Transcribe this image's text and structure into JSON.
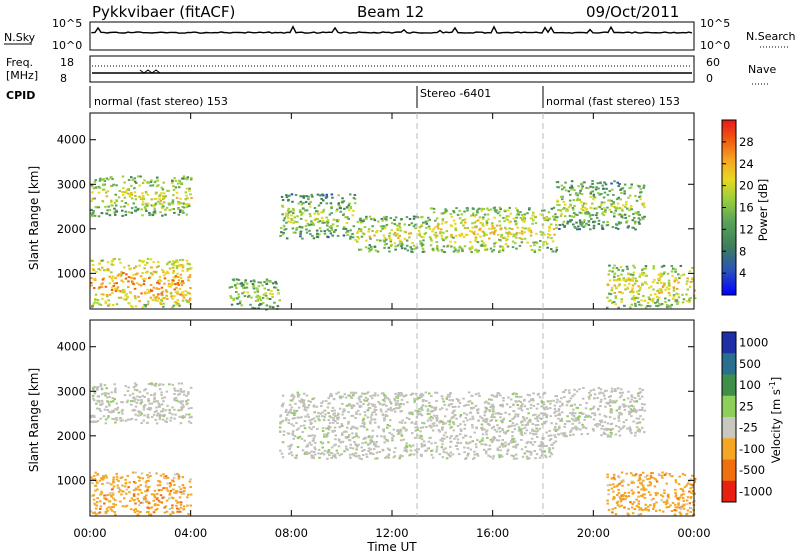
{
  "header": {
    "station": "Pykkvibaer (fitACF)",
    "beam": "Beam 12",
    "date": "09/Oct/2011"
  },
  "top_panels": {
    "nsky_label": "N.Sky",
    "nsky_ticks": [
      "10^5",
      "10^0"
    ],
    "nsearch_label": "N.Search",
    "nsearch_ticks": [
      "10^5",
      "10^0"
    ],
    "freq_label_1": "Freq.",
    "freq_label_2": "[MHz]",
    "freq_ticks": [
      "18",
      "8"
    ],
    "nave_label": "Nave",
    "nave_ticks": [
      "60",
      "0"
    ],
    "cpid_label": "CPID",
    "cpid_segments": [
      {
        "label": "normal (fast stereo) 153",
        "start": 0.0
      },
      {
        "label": "Stereo -6401",
        "start": 13.0
      },
      {
        "label": "normal (fast stereo) 153",
        "start": 18.0
      }
    ]
  },
  "chart_data": [
    {
      "type": "heatmap",
      "title": "",
      "xlabel": "Time UT",
      "ylabel": "Slant Range [km]",
      "xlim": [
        0,
        24
      ],
      "ylim": [
        200,
        4600
      ],
      "x_ticks": [
        "00:00",
        "04:00",
        "08:00",
        "12:00",
        "16:00",
        "20:00",
        "00:00"
      ],
      "y_ticks": [
        "1000",
        "2000",
        "3000",
        "4000"
      ],
      "colorbar_label": "Power [dB]",
      "colorbar_ticks": [
        "28",
        "24",
        "20",
        "16",
        "12",
        "8",
        "4"
      ],
      "colorbar_range": [
        0,
        32
      ],
      "colormap": [
        "#0000ff",
        "#2a52b8",
        "#3f7f5a",
        "#5aa35a",
        "#9ccf3a",
        "#e8d820",
        "#f5a623",
        "#f06010",
        "#e81818"
      ],
      "echo_bands": [
        {
          "t": [
            0.0,
            4.0
          ],
          "r": [
            2300,
            3200
          ],
          "p": 16
        },
        {
          "t": [
            0.0,
            4.0
          ],
          "r": [
            250,
            1350
          ],
          "p": 22
        },
        {
          "t": [
            5.5,
            7.5
          ],
          "r": [
            200,
            900
          ],
          "p": 14
        },
        {
          "t": [
            7.5,
            10.5
          ],
          "r": [
            1800,
            2800
          ],
          "p": 14
        },
        {
          "t": [
            10.5,
            13.5
          ],
          "r": [
            1500,
            2300
          ],
          "p": 16
        },
        {
          "t": [
            13.5,
            18.5
          ],
          "r": [
            1500,
            2500
          ],
          "p": 18
        },
        {
          "t": [
            18.5,
            22.0
          ],
          "r": [
            2000,
            3100
          ],
          "p": 14
        },
        {
          "t": [
            20.5,
            24.0
          ],
          "r": [
            250,
            1200
          ],
          "p": 18
        }
      ]
    },
    {
      "type": "heatmap",
      "title": "",
      "xlabel": "Time UT",
      "ylabel": "Slant Range [km]",
      "xlim": [
        0,
        24
      ],
      "ylim": [
        200,
        4600
      ],
      "x_ticks": [
        "00:00",
        "04:00",
        "08:00",
        "12:00",
        "16:00",
        "20:00",
        "00:00"
      ],
      "y_ticks": [
        "1000",
        "2000",
        "3000",
        "4000"
      ],
      "colorbar_label": "Velocity [m s^-1]",
      "colorbar_ticks": [
        "1000",
        "500",
        "100",
        "25",
        "-25",
        "-100",
        "-500",
        "-1000"
      ],
      "colorbar_range": [
        -1200,
        1200
      ],
      "colormap": [
        "#1f2fa8",
        "#2a6f8f",
        "#3f8f4a",
        "#8ccf5a",
        "#c8c8c0",
        "#f5a623",
        "#f07010",
        "#e82010"
      ],
      "ground_scatter_color": "#c0c0b8",
      "echo_bands": [
        {
          "t": [
            0.0,
            4.0
          ],
          "r": [
            2300,
            3200
          ],
          "v": 0
        },
        {
          "t": [
            0.0,
            4.0
          ],
          "r": [
            250,
            1200
          ],
          "v": -300
        },
        {
          "t": [
            7.5,
            18.5
          ],
          "r": [
            1500,
            3000
          ],
          "v": 0
        },
        {
          "t": [
            18.5,
            22.0
          ],
          "r": [
            2000,
            3100
          ],
          "v": 0
        },
        {
          "t": [
            20.5,
            24.0
          ],
          "r": [
            250,
            1200
          ],
          "v": -300
        }
      ]
    }
  ]
}
